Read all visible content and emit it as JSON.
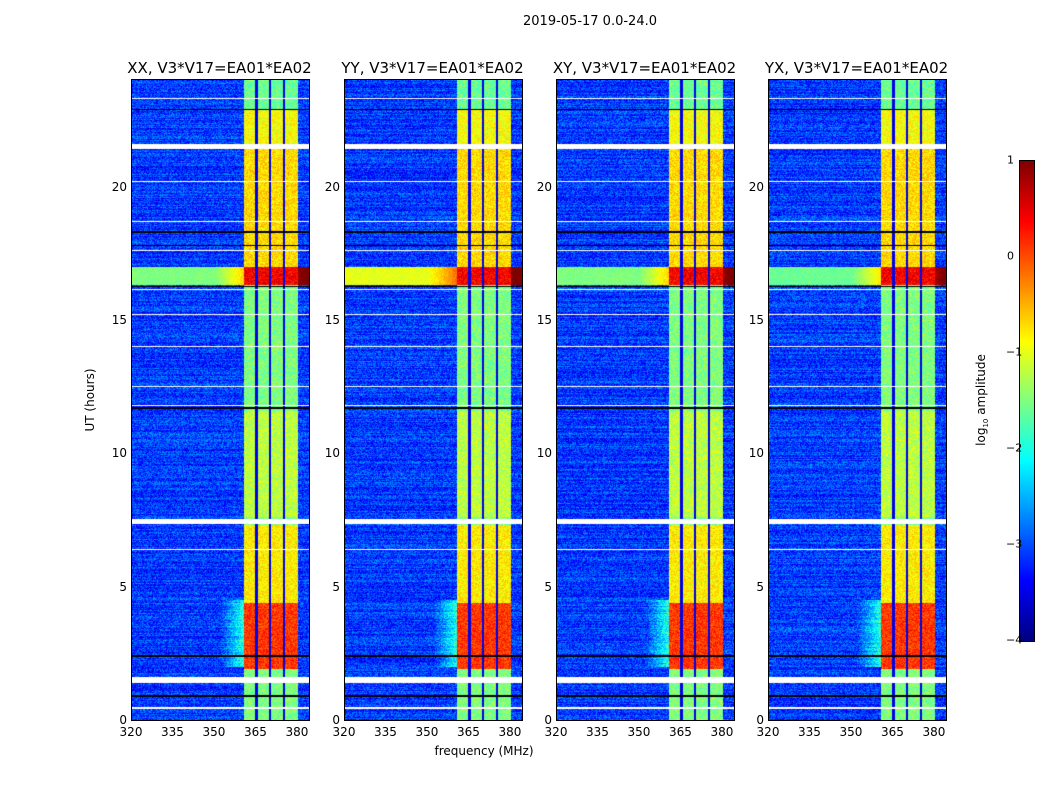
{
  "chart_data": {
    "type": "heatmap",
    "title": "2019-05-17 0.0-24.0",
    "xlabel": "frequency (MHz)",
    "ylabel": "UT (hours)",
    "xlim": [
      320,
      384
    ],
    "ylim": [
      0,
      24
    ],
    "xticks": [
      "320",
      "335",
      "350",
      "365",
      "380"
    ],
    "yticks": [
      "0",
      "5",
      "10",
      "15",
      "20"
    ],
    "panels": [
      {
        "title": "XX, V3*V17=EA01*EA02",
        "storm_level": 0.1
      },
      {
        "title": "YY, V3*V17=EA01*EA02",
        "storm_level": 0.6
      },
      {
        "title": "XY, V3*V17=EA01*EA02",
        "storm_level": 0.1
      },
      {
        "title": "YX, V3*V17=EA01*EA02",
        "storm_level": 0.0
      }
    ],
    "background_log10_amplitude": -3.1,
    "rfi_band_mhz": [
      360.5,
      380
    ],
    "rfi_band_gaps_mhz": [
      365,
      370,
      375
    ],
    "rfi_intervals_hours": [
      {
        "range": [
          1.9,
          4.4
        ],
        "level": 0.1
      },
      {
        "range": [
          4.4,
          7.3
        ],
        "level": -0.8
      },
      {
        "range": [
          7.6,
          11.6
        ],
        "level": -1.2
      },
      {
        "range": [
          11.8,
          16.2
        ],
        "level": -1.5
      },
      {
        "range": [
          16.3,
          17.0
        ],
        "level": 0.4
      },
      {
        "range": [
          17.0,
          21.4
        ],
        "level": -0.7
      },
      {
        "range": [
          21.6,
          22.9
        ],
        "level": -0.9
      },
      {
        "range": [
          22.9,
          24.0
        ],
        "level": -1.6
      }
    ],
    "flagged_hours": [
      0.45,
      1.5,
      6.4,
      7.45,
      11.8,
      12.5,
      14.0,
      15.2,
      16.15,
      17.6,
      18.7,
      20.2,
      21.5,
      23.3
    ],
    "dark_rows_hours": [
      0.9,
      2.4,
      11.7,
      16.25,
      17.8,
      18.3,
      22.9
    ],
    "colorbar": {
      "label": "log10 amplitude",
      "label_main": "log",
      "label_sub": "10",
      "label_rest": " amplitude",
      "range": [
        -4,
        1
      ],
      "ticks": [
        "1",
        "0",
        "−1",
        "−2",
        "−3",
        "−4"
      ],
      "colormap": "jet"
    }
  }
}
